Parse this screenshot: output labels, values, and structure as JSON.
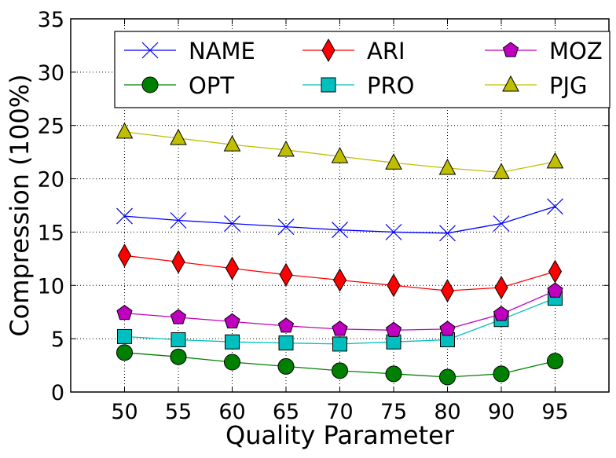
{
  "chart_data": {
    "type": "line",
    "title": "",
    "xlabel": "Quality Parameter",
    "ylabel": "Compression (100%)",
    "categories": [
      "50",
      "55",
      "60",
      "65",
      "70",
      "75",
      "80",
      "90",
      "95"
    ],
    "ylim": [
      0,
      35
    ],
    "yticks": [
      "0",
      "5",
      "10",
      "15",
      "20",
      "25",
      "30",
      "35"
    ],
    "grid": true,
    "legend_position": "top",
    "series": [
      {
        "name": "NAME",
        "color": "#0000ff",
        "marker": "x",
        "values": [
          16.5,
          16.1,
          15.8,
          15.5,
          15.2,
          15.0,
          14.9,
          15.8,
          17.4
        ]
      },
      {
        "name": "OPT",
        "color": "#008000",
        "marker": "circle",
        "values": [
          3.7,
          3.3,
          2.8,
          2.4,
          2.0,
          1.7,
          1.4,
          1.7,
          2.9
        ]
      },
      {
        "name": "ARI",
        "color": "#ff0000",
        "marker": "diamond",
        "values": [
          12.8,
          12.2,
          11.6,
          11.0,
          10.5,
          10.0,
          9.5,
          9.8,
          11.3
        ]
      },
      {
        "name": "PRO",
        "color": "#00bfbf",
        "marker": "square",
        "values": [
          5.2,
          4.9,
          4.7,
          4.6,
          4.5,
          4.7,
          4.9,
          6.8,
          8.8
        ]
      },
      {
        "name": "MOZ",
        "color": "#bf00bf",
        "marker": "pentagon",
        "values": [
          7.4,
          7.0,
          6.6,
          6.2,
          5.9,
          5.8,
          5.9,
          7.3,
          9.5
        ]
      },
      {
        "name": "PJG",
        "color": "#bfbf00",
        "marker": "triangle",
        "values": [
          24.4,
          23.8,
          23.2,
          22.7,
          22.1,
          21.5,
          21.0,
          20.6,
          21.6
        ]
      }
    ]
  }
}
